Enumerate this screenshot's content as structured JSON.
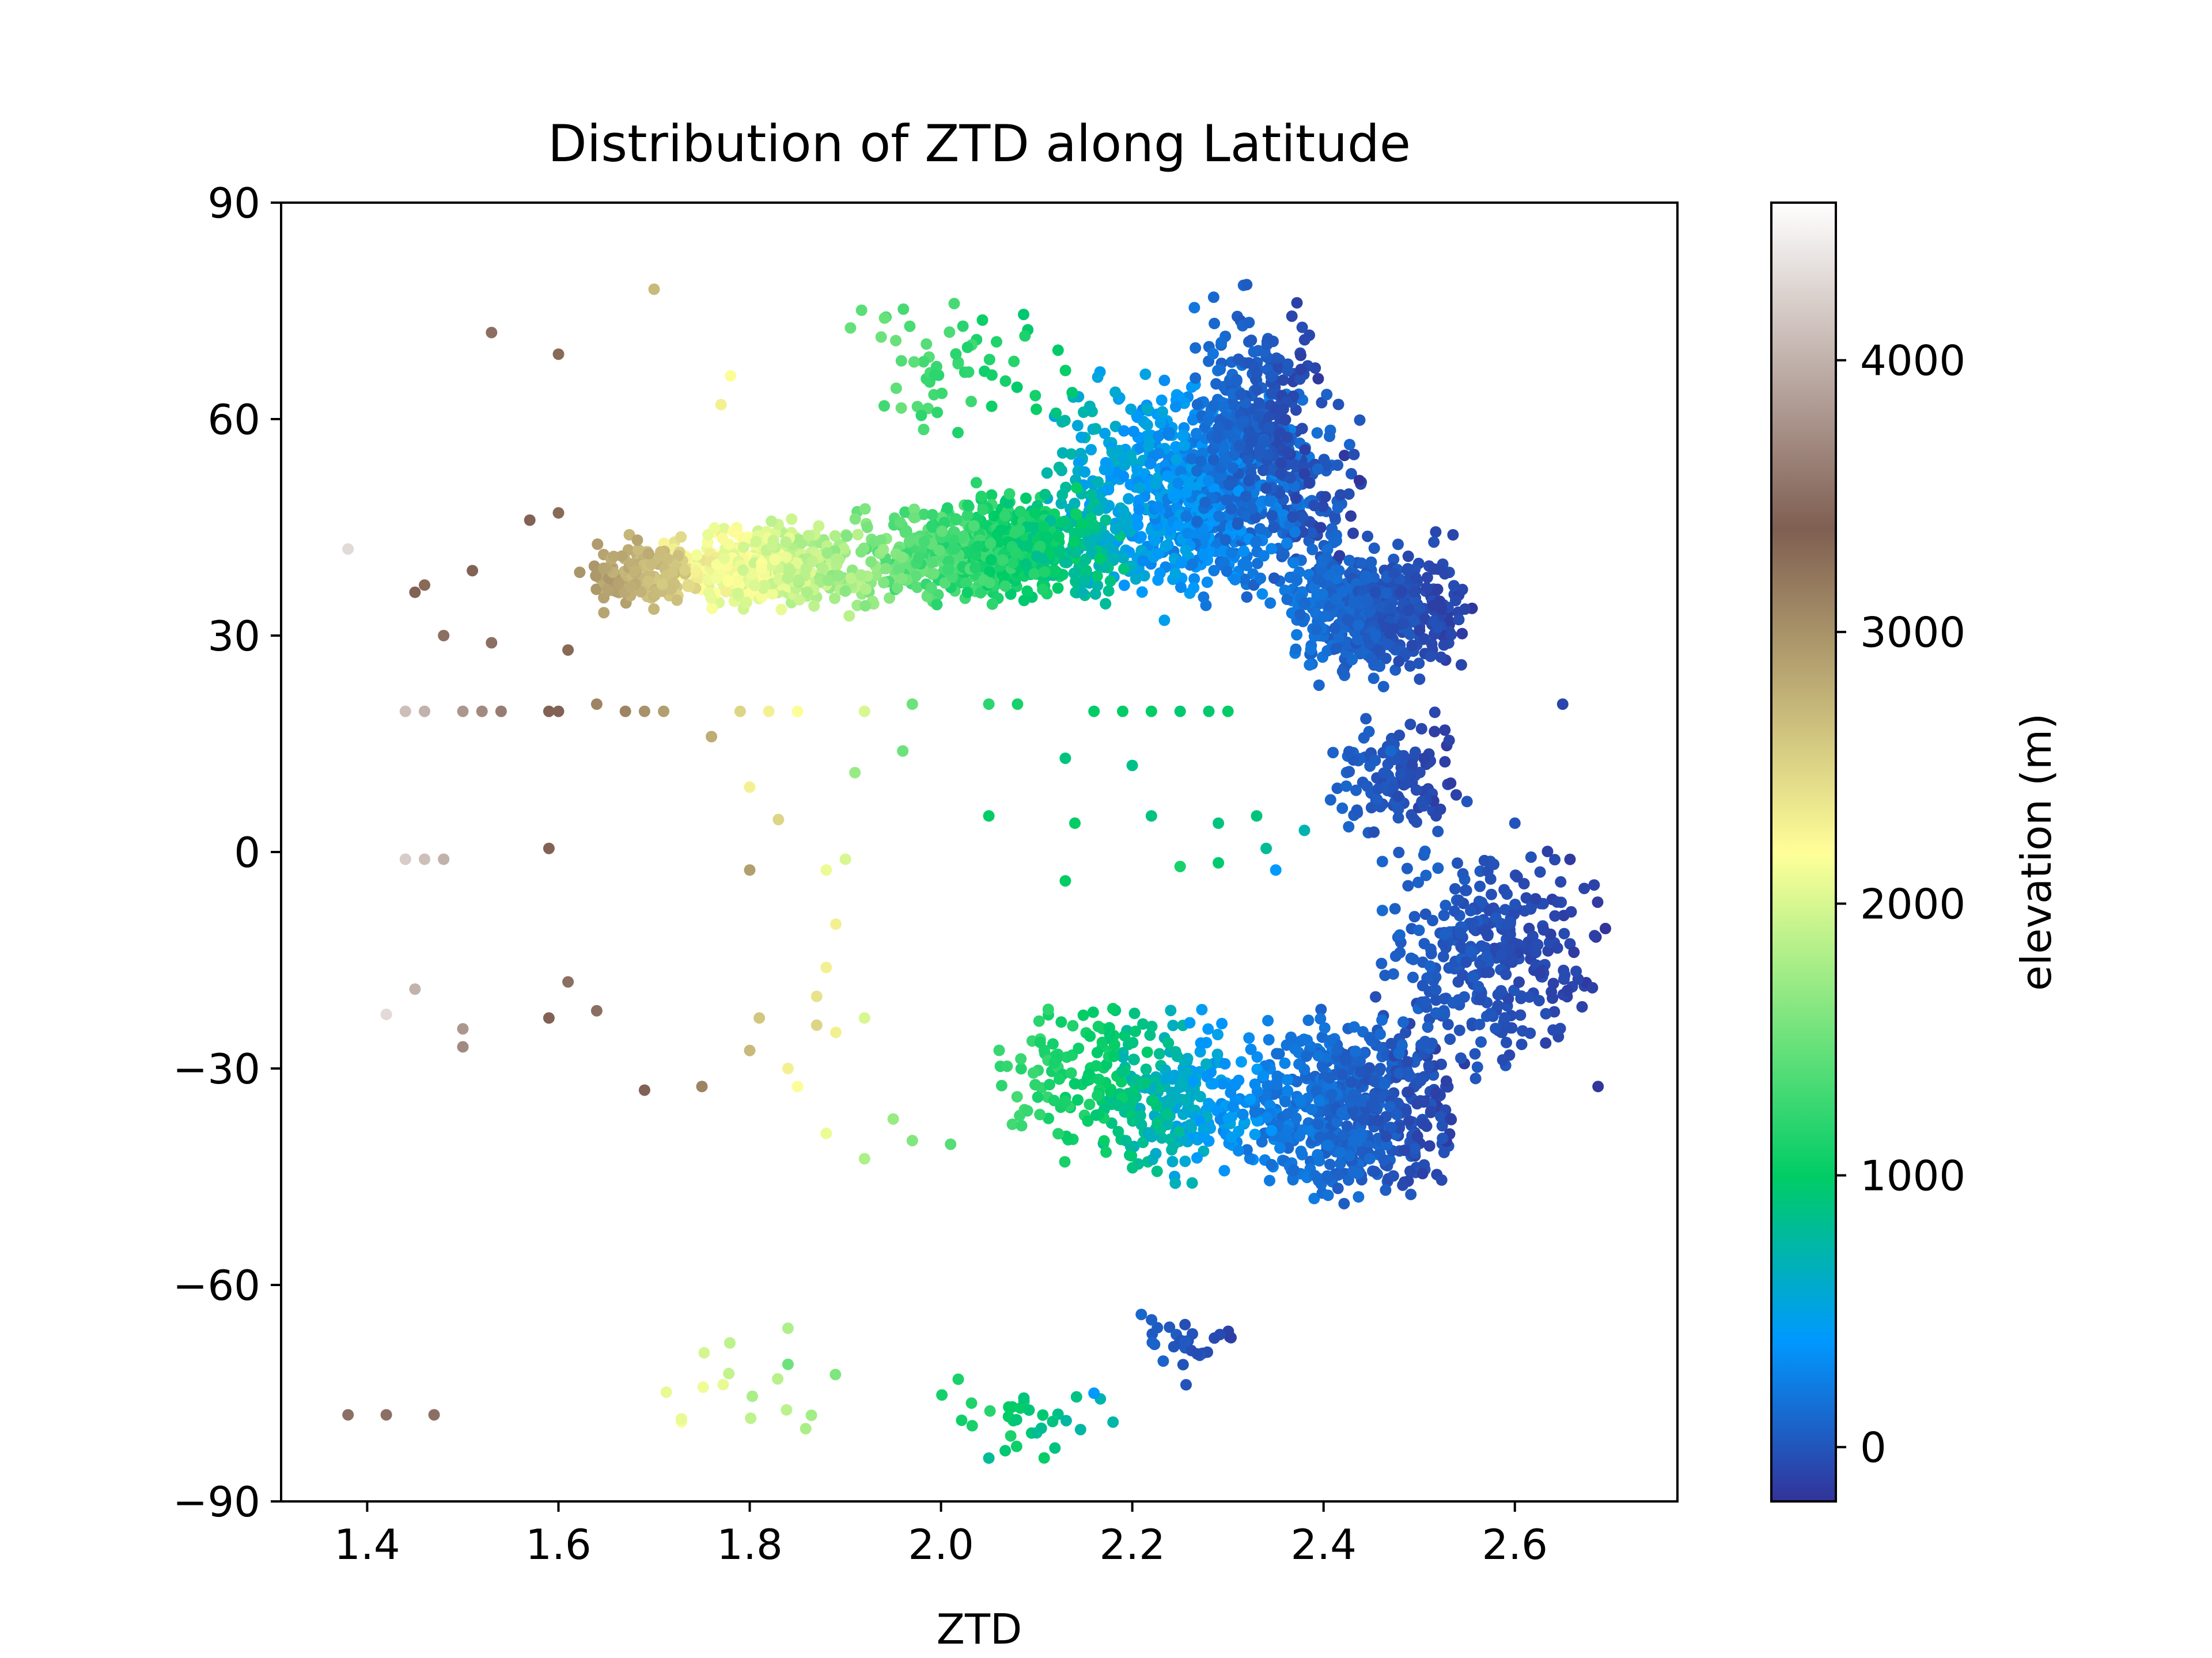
{
  "chart_data": {
    "type": "scatter",
    "title": "Distribution of ZTD along Latitude",
    "xlabel": "ZTD",
    "ylabel": "",
    "xlim": [
      1.31,
      2.77
    ],
    "ylim": [
      -90,
      90
    ],
    "xticks": [
      {
        "value": 1.4,
        "label": "1.4"
      },
      {
        "value": 1.6,
        "label": "1.6"
      },
      {
        "value": 1.8,
        "label": "1.8"
      },
      {
        "value": 2.0,
        "label": "2.0"
      },
      {
        "value": 2.2,
        "label": "2.2"
      },
      {
        "value": 2.4,
        "label": "2.4"
      },
      {
        "value": 2.6,
        "label": "2.6"
      }
    ],
    "yticks": [
      {
        "value": -90,
        "label": "−90"
      },
      {
        "value": -60,
        "label": "−60"
      },
      {
        "value": -30,
        "label": "−30"
      },
      {
        "value": 0,
        "label": "0"
      },
      {
        "value": 30,
        "label": "30"
      },
      {
        "value": 60,
        "label": "60"
      },
      {
        "value": 90,
        "label": "90"
      }
    ],
    "grid": false,
    "colorbar": {
      "label": "elevation (m)",
      "range": [
        -200,
        4580
      ],
      "colormap": "terrain",
      "stops": [
        {
          "value": -200,
          "color": "#333399"
        },
        {
          "value": 395,
          "color": "#0099ff"
        },
        {
          "value": 990,
          "color": "#00cc66"
        },
        {
          "value": 2185,
          "color": "#ffff99"
        },
        {
          "value": 3380,
          "color": "#7f5f52"
        },
        {
          "value": 4580,
          "color": "#ffffff"
        }
      ],
      "ticks": [
        {
          "value": 0,
          "label": "0"
        },
        {
          "value": 1000,
          "label": "1000"
        },
        {
          "value": 2000,
          "label": "2000"
        },
        {
          "value": 3000,
          "label": "3000"
        },
        {
          "value": 4000,
          "label": "4000"
        }
      ]
    },
    "clusters": [
      {
        "x": [
          2.1,
          2.45
        ],
        "y": [
          30,
          70
        ],
        "elev": [
          -100,
          700
        ],
        "n": 900
      },
      {
        "x": [
          2.25,
          2.4
        ],
        "y": [
          40,
          84
        ],
        "elev": [
          -120,
          200
        ],
        "n": 250
      },
      {
        "x": [
          2.35,
          2.56
        ],
        "y": [
          22,
          45
        ],
        "elev": [
          -150,
          200
        ],
        "n": 500
      },
      {
        "x": [
          2.4,
          2.55
        ],
        "y": [
          0,
          22
        ],
        "elev": [
          -150,
          100
        ],
        "n": 120
      },
      {
        "x": [
          1.9,
          2.2
        ],
        "y": [
          32,
          52
        ],
        "elev": [
          700,
          1600
        ],
        "n": 650
      },
      {
        "x": [
          1.7,
          1.95
        ],
        "y": [
          32,
          47
        ],
        "elev": [
          1600,
          2400
        ],
        "n": 450
      },
      {
        "x": [
          1.62,
          1.75
        ],
        "y": [
          32,
          45
        ],
        "elev": [
          2500,
          3000
        ],
        "n": 140
      },
      {
        "x": [
          1.9,
          2.15
        ],
        "y": [
          55,
          78
        ],
        "elev": [
          900,
          1500
        ],
        "n": 60
      },
      {
        "x": [
          2.3,
          2.55
        ],
        "y": [
          -52,
          -18
        ],
        "elev": [
          -120,
          300
        ],
        "n": 600
      },
      {
        "x": [
          2.45,
          2.7
        ],
        "y": [
          -35,
          5
        ],
        "elev": [
          -150,
          100
        ],
        "n": 350
      },
      {
        "x": [
          2.15,
          2.35
        ],
        "y": [
          -48,
          -20
        ],
        "elev": [
          200,
          1000
        ],
        "n": 250
      },
      {
        "x": [
          2.05,
          2.25
        ],
        "y": [
          -46,
          -15
        ],
        "elev": [
          800,
          1300
        ],
        "n": 130
      },
      {
        "x": [
          2.2,
          2.32
        ],
        "y": [
          -75,
          -60
        ],
        "elev": [
          -120,
          100
        ],
        "n": 30
      },
      {
        "x": [
          1.95,
          2.2
        ],
        "y": [
          -86,
          -70
        ],
        "elev": [
          700,
          1300
        ],
        "n": 30
      },
      {
        "x": [
          1.7,
          1.9
        ],
        "y": [
          -86,
          -65
        ],
        "elev": [
          1600,
          2200
        ],
        "n": 15
      }
    ],
    "points": [
      {
        "x": 1.38,
        "y": 42,
        "elev": 4300
      },
      {
        "x": 1.45,
        "y": 36,
        "elev": 3400
      },
      {
        "x": 1.46,
        "y": 37,
        "elev": 3300
      },
      {
        "x": 1.51,
        "y": 39,
        "elev": 3400
      },
      {
        "x": 1.53,
        "y": 72,
        "elev": 3500
      },
      {
        "x": 1.6,
        "y": 69,
        "elev": 3300
      },
      {
        "x": 1.48,
        "y": 30,
        "elev": 3500
      },
      {
        "x": 1.53,
        "y": 29,
        "elev": 3500
      },
      {
        "x": 1.61,
        "y": 28,
        "elev": 3300
      },
      {
        "x": 1.57,
        "y": 46,
        "elev": 3400
      },
      {
        "x": 1.6,
        "y": 47,
        "elev": 3300
      },
      {
        "x": 1.7,
        "y": 78,
        "elev": 2700
      },
      {
        "x": 1.78,
        "y": 66,
        "elev": 2200
      },
      {
        "x": 1.77,
        "y": 62,
        "elev": 2300
      },
      {
        "x": 1.44,
        "y": 19.5,
        "elev": 4100
      },
      {
        "x": 1.46,
        "y": 19.5,
        "elev": 4000
      },
      {
        "x": 1.5,
        "y": 19.5,
        "elev": 3800
      },
      {
        "x": 1.52,
        "y": 19.5,
        "elev": 3700
      },
      {
        "x": 1.54,
        "y": 19.5,
        "elev": 3600
      },
      {
        "x": 1.59,
        "y": 19.5,
        "elev": 3400
      },
      {
        "x": 1.6,
        "y": 19.5,
        "elev": 3400
      },
      {
        "x": 1.64,
        "y": 20.5,
        "elev": 3100
      },
      {
        "x": 1.67,
        "y": 19.5,
        "elev": 3100
      },
      {
        "x": 1.69,
        "y": 19.5,
        "elev": 3000
      },
      {
        "x": 1.71,
        "y": 19.5,
        "elev": 2900
      },
      {
        "x": 1.79,
        "y": 19.5,
        "elev": 2500
      },
      {
        "x": 1.82,
        "y": 19.5,
        "elev": 2300
      },
      {
        "x": 1.85,
        "y": 19.5,
        "elev": 2200
      },
      {
        "x": 1.92,
        "y": 19.5,
        "elev": 2000
      },
      {
        "x": 1.97,
        "y": 20.5,
        "elev": 1500
      },
      {
        "x": 2.05,
        "y": 20.5,
        "elev": 1200
      },
      {
        "x": 2.08,
        "y": 20.5,
        "elev": 1100
      },
      {
        "x": 2.16,
        "y": 19.5,
        "elev": 1000
      },
      {
        "x": 2.19,
        "y": 19.5,
        "elev": 1000
      },
      {
        "x": 2.22,
        "y": 19.5,
        "elev": 1000
      },
      {
        "x": 2.25,
        "y": 19.5,
        "elev": 950
      },
      {
        "x": 2.28,
        "y": 19.5,
        "elev": 950
      },
      {
        "x": 2.3,
        "y": 19.5,
        "elev": 1000
      },
      {
        "x": 1.76,
        "y": 16,
        "elev": 2800
      },
      {
        "x": 1.8,
        "y": 9,
        "elev": 2300
      },
      {
        "x": 1.83,
        "y": 4.5,
        "elev": 2500
      },
      {
        "x": 1.91,
        "y": 11,
        "elev": 1700
      },
      {
        "x": 1.96,
        "y": 14,
        "elev": 1500
      },
      {
        "x": 2.13,
        "y": 13,
        "elev": 900
      },
      {
        "x": 2.2,
        "y": 12,
        "elev": 850
      },
      {
        "x": 2.14,
        "y": 4,
        "elev": 1000
      },
      {
        "x": 2.22,
        "y": 5,
        "elev": 900
      },
      {
        "x": 2.05,
        "y": 5,
        "elev": 1000
      },
      {
        "x": 2.13,
        "y": -4,
        "elev": 1000
      },
      {
        "x": 2.25,
        "y": -2,
        "elev": 1100
      },
      {
        "x": 2.29,
        "y": 4,
        "elev": 900
      },
      {
        "x": 2.33,
        "y": 5,
        "elev": 900
      },
      {
        "x": 2.34,
        "y": 0.5,
        "elev": 800
      },
      {
        "x": 2.29,
        "y": -1.5,
        "elev": 950
      },
      {
        "x": 2.38,
        "y": 3,
        "elev": 700
      },
      {
        "x": 2.35,
        "y": -2.5,
        "elev": 400
      },
      {
        "x": 2.47,
        "y": 14,
        "elev": 100
      },
      {
        "x": 2.55,
        "y": 7,
        "elev": 0
      },
      {
        "x": 2.6,
        "y": 4,
        "elev": 0
      },
      {
        "x": 2.65,
        "y": 20.5,
        "elev": -100
      },
      {
        "x": 1.44,
        "y": -1,
        "elev": 4200
      },
      {
        "x": 1.46,
        "y": -1,
        "elev": 4100
      },
      {
        "x": 1.48,
        "y": -1,
        "elev": 4000
      },
      {
        "x": 1.59,
        "y": 0.5,
        "elev": 3400
      },
      {
        "x": 1.8,
        "y": -2.5,
        "elev": 2900
      },
      {
        "x": 1.88,
        "y": -2.5,
        "elev": 2100
      },
      {
        "x": 1.89,
        "y": -10,
        "elev": 2300
      },
      {
        "x": 1.9,
        "y": -1,
        "elev": 2000
      },
      {
        "x": 1.42,
        "y": -22.5,
        "elev": 4300
      },
      {
        "x": 1.45,
        "y": -19,
        "elev": 4000
      },
      {
        "x": 1.5,
        "y": -24.5,
        "elev": 3800
      },
      {
        "x": 1.5,
        "y": -27,
        "elev": 3700
      },
      {
        "x": 1.59,
        "y": -23,
        "elev": 3400
      },
      {
        "x": 1.61,
        "y": -18,
        "elev": 3500
      },
      {
        "x": 1.64,
        "y": -22,
        "elev": 3500
      },
      {
        "x": 1.69,
        "y": -33,
        "elev": 3400
      },
      {
        "x": 1.75,
        "y": -32.5,
        "elev": 3100
      },
      {
        "x": 1.8,
        "y": -27.5,
        "elev": 2700
      },
      {
        "x": 1.81,
        "y": -23,
        "elev": 2600
      },
      {
        "x": 1.84,
        "y": -30,
        "elev": 2300
      },
      {
        "x": 1.85,
        "y": -32.5,
        "elev": 2200
      },
      {
        "x": 1.87,
        "y": -24,
        "elev": 2500
      },
      {
        "x": 1.87,
        "y": -20,
        "elev": 2400
      },
      {
        "x": 1.88,
        "y": -16,
        "elev": 2300
      },
      {
        "x": 1.89,
        "y": -25,
        "elev": 2300
      },
      {
        "x": 1.92,
        "y": -23,
        "elev": 2000
      },
      {
        "x": 1.88,
        "y": -39,
        "elev": 2100
      },
      {
        "x": 1.92,
        "y": -42.5,
        "elev": 1800
      },
      {
        "x": 1.95,
        "y": -37,
        "elev": 1700
      },
      {
        "x": 1.97,
        "y": -40,
        "elev": 1600
      },
      {
        "x": 2.01,
        "y": -40.5,
        "elev": 1400
      },
      {
        "x": 1.38,
        "y": -78,
        "elev": 3500
      },
      {
        "x": 1.42,
        "y": -78,
        "elev": 3500
      },
      {
        "x": 1.47,
        "y": -78,
        "elev": 3500
      },
      {
        "x": 1.84,
        "y": -66,
        "elev": 1800
      },
      {
        "x": 1.84,
        "y": -71,
        "elev": 1500
      },
      {
        "x": 2.16,
        "y": -75,
        "elev": 400
      },
      {
        "x": 2.1,
        "y": -80.5,
        "elev": 800
      },
      {
        "x": 2.05,
        "y": -84,
        "elev": 800
      }
    ]
  }
}
